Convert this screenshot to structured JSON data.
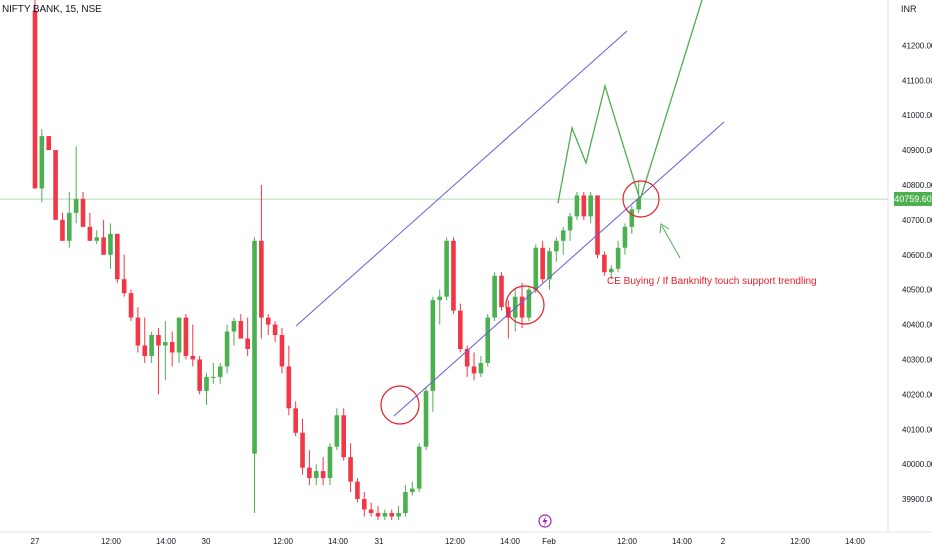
{
  "symbol": "NIFTY BANK, 15, NSE",
  "currency": "INR",
  "last_price_label": "40759.60",
  "annotation": "CE Buying / If Banknifty touch support trendling",
  "colors": {
    "up": "#4caf50",
    "down": "#f23645",
    "channel": "#6b5bd6",
    "projection": "#4caf50",
    "circle": "#e8202a",
    "arrow": "#4caf50",
    "price_line": "#4caf50",
    "axis_text": "#131722"
  },
  "chart_data": {
    "type": "candlestick",
    "ylim": [
      39840,
      41330
    ],
    "y_ticks": [
      41200,
      41100,
      41000,
      40900,
      40800,
      40700,
      40600,
      40500,
      40400,
      40300,
      40200,
      40100,
      40000,
      39900
    ],
    "y_tick_labels": [
      "41200.00",
      "41100.00",
      "41000.00",
      "40900.00",
      "40800.00",
      "40700.00",
      "40600.00",
      "40500.00",
      "40400.00",
      "40300.00",
      "40200.00",
      "40100.00",
      "40000.00",
      "39900.00"
    ],
    "x_ticks": [
      "27",
      "12:00",
      "14:00",
      "30",
      "12:00",
      "14:00",
      "31",
      "12:00",
      "14:00",
      "Feb",
      "12:00",
      "14:00",
      "2",
      "12:00",
      "14:00"
    ],
    "last_price": 40759.6,
    "candles": [
      [
        41300,
        41330,
        40790,
        40790
      ],
      [
        40790,
        40960,
        40750,
        40940
      ],
      [
        40940,
        40940,
        40900,
        40900
      ],
      [
        40900,
        40900,
        40700,
        40700
      ],
      [
        40700,
        40720,
        40640,
        40640
      ],
      [
        40640,
        40780,
        40620,
        40720
      ],
      [
        40720,
        40910,
        40690,
        40760
      ],
      [
        40760,
        40780,
        40680,
        40680
      ],
      [
        40680,
        40720,
        40640,
        40640
      ],
      [
        40640,
        40670,
        40630,
        40650
      ],
      [
        40650,
        40700,
        40600,
        40600
      ],
      [
        40600,
        40690,
        40560,
        40660
      ],
      [
        40660,
        40660,
        40520,
        40530
      ],
      [
        40530,
        40600,
        40480,
        40490
      ],
      [
        40490,
        40500,
        40410,
        40420
      ],
      [
        40420,
        40450,
        40320,
        40340
      ],
      [
        40340,
        40420,
        40290,
        40310
      ],
      [
        40310,
        40380,
        40290,
        40370
      ],
      [
        40370,
        40390,
        40200,
        40340
      ],
      [
        40340,
        40410,
        40240,
        40350
      ],
      [
        40350,
        40380,
        40280,
        40320
      ],
      [
        40320,
        40420,
        40290,
        40420
      ],
      [
        40420,
        40430,
        40300,
        40310
      ],
      [
        40310,
        40400,
        40280,
        40300
      ],
      [
        40300,
        40310,
        40200,
        40210
      ],
      [
        40210,
        40260,
        40170,
        40250
      ],
      [
        40250,
        40290,
        40230,
        40250
      ],
      [
        40250,
        40290,
        40230,
        40280
      ],
      [
        40280,
        40400,
        40260,
        40380
      ],
      [
        40380,
        40420,
        40340,
        40410
      ],
      [
        40410,
        40430,
        40360,
        40360
      ],
      [
        40360,
        40420,
        40310,
        40330
      ],
      [
        40030,
        40650,
        39860,
        40640
      ],
      [
        40640,
        40800,
        40360,
        40420
      ],
      [
        40420,
        40430,
        40370,
        40400
      ],
      [
        40400,
        40410,
        40350,
        40370
      ],
      [
        40370,
        40390,
        40260,
        40280
      ],
      [
        40280,
        40340,
        40140,
        40160
      ],
      [
        40160,
        40180,
        40080,
        40090
      ],
      [
        40090,
        40130,
        39970,
        39990
      ],
      [
        39990,
        40040,
        39940,
        39960
      ],
      [
        39960,
        40000,
        39940,
        39980
      ],
      [
        39980,
        40020,
        39940,
        39960
      ],
      [
        39960,
        40060,
        39940,
        40050
      ],
      [
        40050,
        40160,
        40040,
        40140
      ],
      [
        40140,
        40160,
        40010,
        40020
      ],
      [
        40020,
        40060,
        39920,
        39950
      ],
      [
        39950,
        39960,
        39890,
        39900
      ],
      [
        39900,
        39920,
        39850,
        39870
      ],
      [
        39870,
        39890,
        39850,
        39860
      ],
      [
        39860,
        39880,
        39840,
        39850
      ],
      [
        39850,
        39870,
        39840,
        39860
      ],
      [
        39860,
        39870,
        39840,
        39850
      ],
      [
        39850,
        39880,
        39840,
        39860
      ],
      [
        39860,
        39940,
        39850,
        39920
      ],
      [
        39920,
        39950,
        39910,
        39930
      ],
      [
        39930,
        40060,
        39920,
        40050
      ],
      [
        40050,
        40220,
        40040,
        40210
      ],
      [
        40210,
        40480,
        40150,
        40470
      ],
      [
        40470,
        40500,
        40400,
        40480
      ],
      [
        40480,
        40650,
        40470,
        40640
      ],
      [
        40640,
        40650,
        40430,
        40440
      ],
      [
        40440,
        40460,
        40320,
        40330
      ],
      [
        40330,
        40340,
        40250,
        40280
      ],
      [
        40280,
        40320,
        40240,
        40260
      ],
      [
        40260,
        40310,
        40250,
        40290
      ],
      [
        40290,
        40430,
        40280,
        40420
      ],
      [
        40420,
        40550,
        40410,
        40540
      ],
      [
        40540,
        40550,
        40440,
        40450
      ],
      [
        40450,
        40470,
        40360,
        40420
      ],
      [
        40420,
        40500,
        40380,
        40480
      ],
      [
        40480,
        40520,
        40390,
        40420
      ],
      [
        40420,
        40510,
        40410,
        40500
      ],
      [
        40500,
        40630,
        40490,
        40620
      ],
      [
        40620,
        40640,
        40520,
        40530
      ],
      [
        40530,
        40620,
        40500,
        40610
      ],
      [
        40610,
        40650,
        40580,
        40640
      ],
      [
        40640,
        40680,
        40600,
        40670
      ],
      [
        40670,
        40720,
        40640,
        40710
      ],
      [
        40710,
        40780,
        40700,
        40770
      ],
      [
        40770,
        40780,
        40700,
        40710
      ],
      [
        40710,
        40780,
        40690,
        40770
      ],
      [
        40770,
        40770,
        40590,
        40600
      ],
      [
        40600,
        40610,
        40540,
        40550
      ],
      [
        40550,
        40570,
        40530,
        40560
      ],
      [
        40560,
        40640,
        40550,
        40620
      ],
      [
        40620,
        40690,
        40600,
        40680
      ],
      [
        40680,
        40740,
        40660,
        40730
      ],
      [
        40730,
        40810,
        40720,
        40760
      ]
    ]
  }
}
